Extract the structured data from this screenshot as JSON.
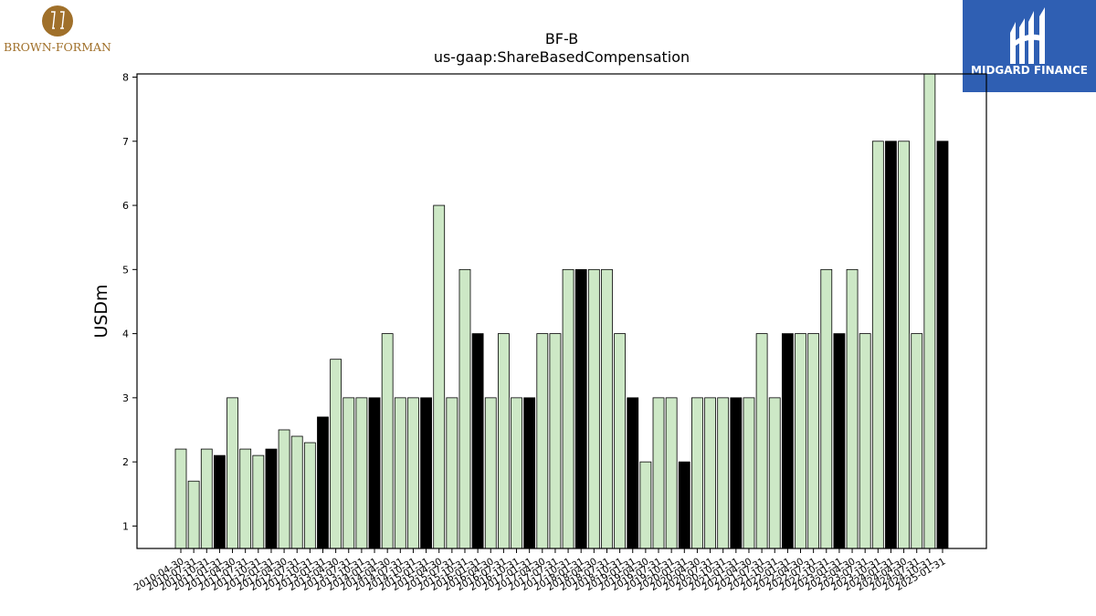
{
  "brand_left": {
    "name": "BROWN-FORMAN",
    "color": "#a0702a"
  },
  "brand_right": {
    "name": "MIDGARD FINANCE",
    "color": "#2f5fb3"
  },
  "chart_data": {
    "type": "bar",
    "title": "BF-B",
    "subtitle": "us-gaap:ShareBasedCompensation",
    "xlabel": "",
    "ylabel": "USDm",
    "ylim": [
      0.65,
      8.05
    ],
    "yticks": [
      1,
      2,
      3,
      4,
      5,
      6,
      7,
      8
    ],
    "colors": {
      "quarter": "#cde8c6",
      "annual": "#000000",
      "edge": "#000000"
    },
    "categories": [
      "2010-04-30",
      "2010-07-31",
      "2010-10-31",
      "2011-01-31",
      "2011-04-30",
      "2011-07-31",
      "2011-10-31",
      "2012-01-31",
      "2012-04-30",
      "2012-07-31",
      "2012-10-31",
      "2013-01-31",
      "2013-04-30",
      "2013-07-31",
      "2013-10-31",
      "2014-01-31",
      "2014-04-30",
      "2014-07-31",
      "2014-10-31",
      "2015-01-31",
      "2015-04-30",
      "2015-07-31",
      "2015-10-31",
      "2016-01-31",
      "2016-04-30",
      "2016-07-31",
      "2016-10-31",
      "2017-01-31",
      "2017-04-30",
      "2017-07-31",
      "2017-10-31",
      "2018-01-31",
      "2018-04-30",
      "2018-07-31",
      "2018-10-31",
      "2019-01-31",
      "2019-04-30",
      "2019-07-31",
      "2019-10-31",
      "2020-01-31",
      "2020-04-30",
      "2020-07-31",
      "2020-10-31",
      "2021-01-31",
      "2021-04-30",
      "2021-07-31",
      "2021-10-31",
      "2022-01-31",
      "2022-04-30",
      "2022-07-31",
      "2022-10-31",
      "2023-01-31",
      "2023-04-30",
      "2023-07-31",
      "2023-10-31",
      "2024-01-31",
      "2024-04-30",
      "2024-07-31",
      "2024-10-31",
      "2025-01-31"
    ],
    "values": [
      2.2,
      1.7,
      2.2,
      2.1,
      3,
      2.2,
      2.1,
      2.2,
      2.5,
      2.4,
      2.3,
      2.7,
      3.6,
      3,
      3,
      3,
      4,
      3,
      3,
      3,
      6,
      3,
      5,
      4,
      3,
      4,
      3,
      3,
      4,
      4,
      5,
      5,
      5,
      5,
      4,
      3,
      2,
      3,
      3,
      2,
      3,
      3,
      3,
      3,
      3,
      4,
      3,
      4,
      4,
      4,
      5,
      4,
      5,
      4,
      7,
      7,
      7,
      4,
      8.05,
      7
    ],
    "highlight": [
      false,
      false,
      false,
      true,
      false,
      false,
      false,
      true,
      false,
      false,
      false,
      true,
      false,
      false,
      false,
      true,
      false,
      false,
      false,
      true,
      false,
      false,
      false,
      true,
      false,
      false,
      false,
      true,
      false,
      false,
      false,
      true,
      false,
      false,
      false,
      true,
      false,
      false,
      false,
      true,
      false,
      false,
      false,
      true,
      false,
      false,
      false,
      true,
      false,
      false,
      false,
      true,
      false,
      false,
      false,
      true,
      false,
      false,
      false,
      true
    ]
  }
}
